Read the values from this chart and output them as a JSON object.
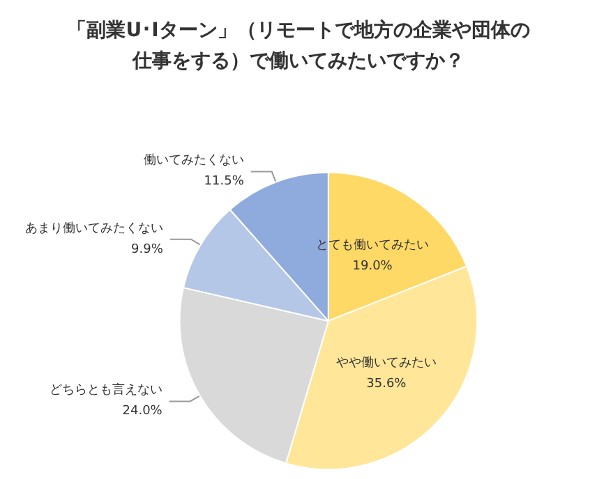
{
  "chart_data": {
    "type": "pie",
    "title": "「副業U･Iターン」（リモートで地方の企業や団体の仕事をする）で働いてみたいですか？",
    "categories": [
      "とても働いてみたい",
      "やや働いてみたい",
      "どちらとも言えない",
      "あまり働いてみたくない",
      "働いてみたくない"
    ],
    "values": [
      19.0,
      35.6,
      24.0,
      9.9,
      11.5
    ],
    "value_labels": [
      "19.0%",
      "35.6%",
      "24.0%",
      "9.9%",
      "11.5%"
    ],
    "colors": [
      "#ffd966",
      "#ffe699",
      "#d9d9d9",
      "#b4c7e7",
      "#8faadc"
    ],
    "legend": false
  }
}
